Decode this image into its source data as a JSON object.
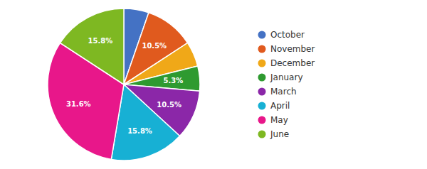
{
  "chart_data": {
    "type": "pie",
    "categories": [
      "October",
      "November",
      "December",
      "January",
      "March",
      "April",
      "May",
      "June"
    ],
    "values": [
      5.3,
      10.5,
      5.3,
      5.3,
      10.5,
      15.8,
      31.6,
      15.8
    ],
    "value_labels": [
      null,
      "10.5%",
      null,
      "5.3%",
      "10.5%",
      "15.8%",
      "31.6%",
      "15.8%"
    ],
    "colors": [
      "#4472C4",
      "#E05A1E",
      "#F0A818",
      "#2E9A30",
      "#8B27A8",
      "#17B0D4",
      "#E8178A",
      "#7EB822"
    ],
    "data_labels": true,
    "legend": "right"
  }
}
